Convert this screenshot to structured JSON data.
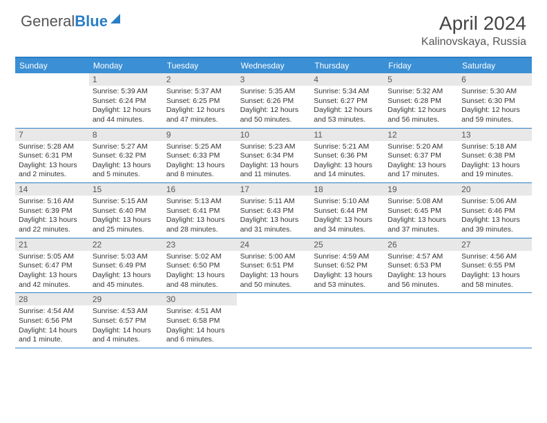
{
  "logo": {
    "text1": "General",
    "text2": "Blue"
  },
  "title": "April 2024",
  "location": "Kalinovskaya, Russia",
  "colors": {
    "accent": "#2a7ec5",
    "header_bg": "#3b8fd4",
    "daynum_bg": "#e8e8e8",
    "text": "#333333"
  },
  "day_names": [
    "Sunday",
    "Monday",
    "Tuesday",
    "Wednesday",
    "Thursday",
    "Friday",
    "Saturday"
  ],
  "weeks": [
    [
      {
        "n": "",
        "sr": "",
        "ss": "",
        "dl": ""
      },
      {
        "n": "1",
        "sr": "Sunrise: 5:39 AM",
        "ss": "Sunset: 6:24 PM",
        "dl": "Daylight: 12 hours and 44 minutes."
      },
      {
        "n": "2",
        "sr": "Sunrise: 5:37 AM",
        "ss": "Sunset: 6:25 PM",
        "dl": "Daylight: 12 hours and 47 minutes."
      },
      {
        "n": "3",
        "sr": "Sunrise: 5:35 AM",
        "ss": "Sunset: 6:26 PM",
        "dl": "Daylight: 12 hours and 50 minutes."
      },
      {
        "n": "4",
        "sr": "Sunrise: 5:34 AM",
        "ss": "Sunset: 6:27 PM",
        "dl": "Daylight: 12 hours and 53 minutes."
      },
      {
        "n": "5",
        "sr": "Sunrise: 5:32 AM",
        "ss": "Sunset: 6:28 PM",
        "dl": "Daylight: 12 hours and 56 minutes."
      },
      {
        "n": "6",
        "sr": "Sunrise: 5:30 AM",
        "ss": "Sunset: 6:30 PM",
        "dl": "Daylight: 12 hours and 59 minutes."
      }
    ],
    [
      {
        "n": "7",
        "sr": "Sunrise: 5:28 AM",
        "ss": "Sunset: 6:31 PM",
        "dl": "Daylight: 13 hours and 2 minutes."
      },
      {
        "n": "8",
        "sr": "Sunrise: 5:27 AM",
        "ss": "Sunset: 6:32 PM",
        "dl": "Daylight: 13 hours and 5 minutes."
      },
      {
        "n": "9",
        "sr": "Sunrise: 5:25 AM",
        "ss": "Sunset: 6:33 PM",
        "dl": "Daylight: 13 hours and 8 minutes."
      },
      {
        "n": "10",
        "sr": "Sunrise: 5:23 AM",
        "ss": "Sunset: 6:34 PM",
        "dl": "Daylight: 13 hours and 11 minutes."
      },
      {
        "n": "11",
        "sr": "Sunrise: 5:21 AM",
        "ss": "Sunset: 6:36 PM",
        "dl": "Daylight: 13 hours and 14 minutes."
      },
      {
        "n": "12",
        "sr": "Sunrise: 5:20 AM",
        "ss": "Sunset: 6:37 PM",
        "dl": "Daylight: 13 hours and 17 minutes."
      },
      {
        "n": "13",
        "sr": "Sunrise: 5:18 AM",
        "ss": "Sunset: 6:38 PM",
        "dl": "Daylight: 13 hours and 19 minutes."
      }
    ],
    [
      {
        "n": "14",
        "sr": "Sunrise: 5:16 AM",
        "ss": "Sunset: 6:39 PM",
        "dl": "Daylight: 13 hours and 22 minutes."
      },
      {
        "n": "15",
        "sr": "Sunrise: 5:15 AM",
        "ss": "Sunset: 6:40 PM",
        "dl": "Daylight: 13 hours and 25 minutes."
      },
      {
        "n": "16",
        "sr": "Sunrise: 5:13 AM",
        "ss": "Sunset: 6:41 PM",
        "dl": "Daylight: 13 hours and 28 minutes."
      },
      {
        "n": "17",
        "sr": "Sunrise: 5:11 AM",
        "ss": "Sunset: 6:43 PM",
        "dl": "Daylight: 13 hours and 31 minutes."
      },
      {
        "n": "18",
        "sr": "Sunrise: 5:10 AM",
        "ss": "Sunset: 6:44 PM",
        "dl": "Daylight: 13 hours and 34 minutes."
      },
      {
        "n": "19",
        "sr": "Sunrise: 5:08 AM",
        "ss": "Sunset: 6:45 PM",
        "dl": "Daylight: 13 hours and 37 minutes."
      },
      {
        "n": "20",
        "sr": "Sunrise: 5:06 AM",
        "ss": "Sunset: 6:46 PM",
        "dl": "Daylight: 13 hours and 39 minutes."
      }
    ],
    [
      {
        "n": "21",
        "sr": "Sunrise: 5:05 AM",
        "ss": "Sunset: 6:47 PM",
        "dl": "Daylight: 13 hours and 42 minutes."
      },
      {
        "n": "22",
        "sr": "Sunrise: 5:03 AM",
        "ss": "Sunset: 6:49 PM",
        "dl": "Daylight: 13 hours and 45 minutes."
      },
      {
        "n": "23",
        "sr": "Sunrise: 5:02 AM",
        "ss": "Sunset: 6:50 PM",
        "dl": "Daylight: 13 hours and 48 minutes."
      },
      {
        "n": "24",
        "sr": "Sunrise: 5:00 AM",
        "ss": "Sunset: 6:51 PM",
        "dl": "Daylight: 13 hours and 50 minutes."
      },
      {
        "n": "25",
        "sr": "Sunrise: 4:59 AM",
        "ss": "Sunset: 6:52 PM",
        "dl": "Daylight: 13 hours and 53 minutes."
      },
      {
        "n": "26",
        "sr": "Sunrise: 4:57 AM",
        "ss": "Sunset: 6:53 PM",
        "dl": "Daylight: 13 hours and 56 minutes."
      },
      {
        "n": "27",
        "sr": "Sunrise: 4:56 AM",
        "ss": "Sunset: 6:55 PM",
        "dl": "Daylight: 13 hours and 58 minutes."
      }
    ],
    [
      {
        "n": "28",
        "sr": "Sunrise: 4:54 AM",
        "ss": "Sunset: 6:56 PM",
        "dl": "Daylight: 14 hours and 1 minute."
      },
      {
        "n": "29",
        "sr": "Sunrise: 4:53 AM",
        "ss": "Sunset: 6:57 PM",
        "dl": "Daylight: 14 hours and 4 minutes."
      },
      {
        "n": "30",
        "sr": "Sunrise: 4:51 AM",
        "ss": "Sunset: 6:58 PM",
        "dl": "Daylight: 14 hours and 6 minutes."
      },
      {
        "n": "",
        "sr": "",
        "ss": "",
        "dl": ""
      },
      {
        "n": "",
        "sr": "",
        "ss": "",
        "dl": ""
      },
      {
        "n": "",
        "sr": "",
        "ss": "",
        "dl": ""
      },
      {
        "n": "",
        "sr": "",
        "ss": "",
        "dl": ""
      }
    ]
  ]
}
